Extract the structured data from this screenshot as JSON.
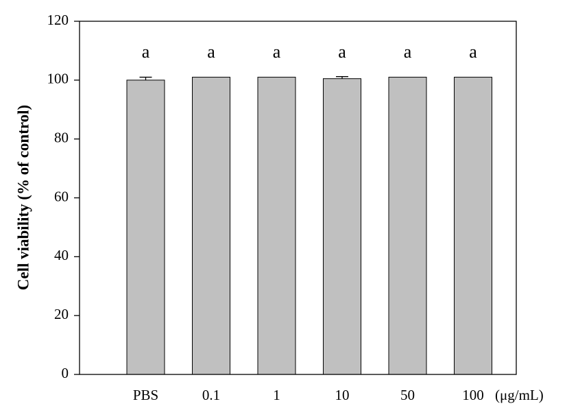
{
  "chart_data": {
    "type": "bar",
    "y_label": "Cell viability (% of control)",
    "x_label": "(μg/mL)",
    "categories": [
      "PBS",
      "0.1",
      "1",
      "10",
      "50",
      "100"
    ],
    "values": [
      100,
      101,
      101,
      100.5,
      101,
      101
    ],
    "errors": [
      1,
      0,
      0,
      0.7,
      0,
      0
    ],
    "significance_labels": [
      "a",
      "a",
      "a",
      "a",
      "a",
      "a"
    ],
    "color": "#c0c0c0",
    "ylim": [
      0,
      120
    ],
    "yticks": [
      0,
      20,
      40,
      60,
      80,
      100,
      120
    ],
    "grid": false
  }
}
